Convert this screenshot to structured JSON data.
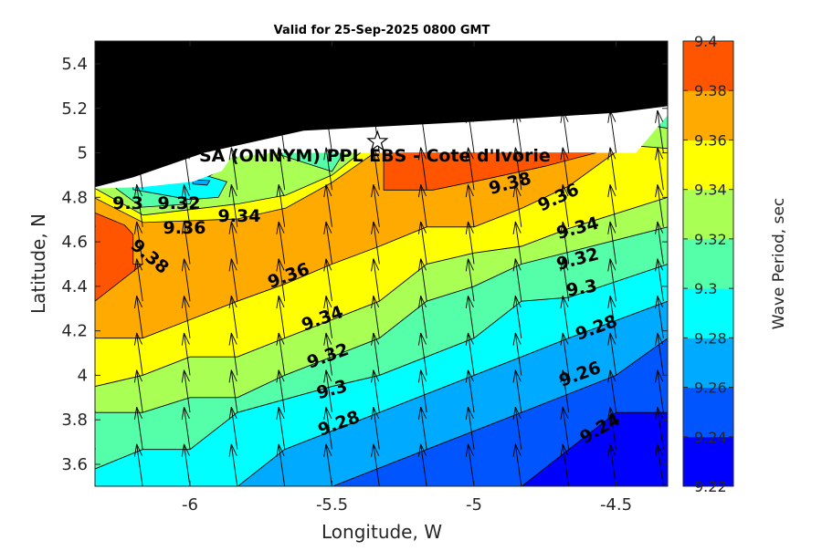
{
  "chart_data": {
    "type": "contour",
    "title": "Valid for 25-Sep-2025 0800 GMT",
    "xlabel": "Longitude, W",
    "ylabel": "Latitude, N",
    "xlim": [
      -6.334,
      -4.318
    ],
    "ylim": [
      3.5,
      5.5
    ],
    "xticks": [
      -6,
      -5.5,
      -5,
      -4.5
    ],
    "xtick_labels": [
      "-6",
      "-5.5",
      "-5",
      "-4.5"
    ],
    "yticks": [
      5.4,
      5.2,
      5.0,
      4.8,
      4.6,
      4.4,
      4.2,
      4.0,
      3.8,
      3.6
    ],
    "ytick_labels": [
      "5.4",
      "5.2",
      "5",
      "4.8",
      "4.6",
      "4.4",
      "4.2",
      "4",
      "3.8",
      "3.6"
    ],
    "colorbar": {
      "label": "Wave Period, sec",
      "levels": [
        9.22,
        9.24,
        9.26,
        9.28,
        9.3,
        9.32,
        9.34,
        9.36,
        9.38,
        9.4
      ],
      "tick_labels": [
        "9.22",
        "9.24",
        "9.26",
        "9.28",
        "9.3",
        "9.32",
        "9.34",
        "9.36",
        "9.38",
        "9.4"
      ],
      "colors": [
        "#0000ff",
        "#0055ff",
        "#00aaff",
        "#00ffff",
        "#55ffaa",
        "#aaff55",
        "#ffff00",
        "#ffaa00",
        "#ff5500"
      ]
    },
    "contours": [
      {
        "level": 9.24,
        "points": [
          [
            -4.833,
            3.5
          ],
          [
            -4.5,
            3.833
          ],
          [
            -4.318,
            3.833
          ]
        ]
      },
      {
        "level": 9.26,
        "points": [
          [
            -5.5,
            3.5
          ],
          [
            -5.167,
            3.667
          ],
          [
            -4.833,
            3.833
          ],
          [
            -4.5,
            4.0
          ],
          [
            -4.318,
            4.167
          ]
        ]
      },
      {
        "level": 9.28,
        "points": [
          [
            -5.833,
            3.5
          ],
          [
            -5.667,
            3.667
          ],
          [
            -5.333,
            3.833
          ],
          [
            -5.0,
            4.0
          ],
          [
            -4.833,
            4.083
          ],
          [
            -4.667,
            4.167
          ],
          [
            -4.318,
            4.333
          ]
        ]
      },
      {
        "level": 9.3,
        "points": [
          [
            -6.334,
            3.58
          ],
          [
            -6.167,
            3.667
          ],
          [
            -6.0,
            3.667
          ],
          [
            -5.833,
            3.833
          ],
          [
            -5.5,
            3.95
          ],
          [
            -5.333,
            4.0
          ],
          [
            -5.0,
            4.167
          ],
          [
            -4.833,
            4.333
          ],
          [
            -4.667,
            4.35
          ],
          [
            -4.318,
            4.5
          ]
        ]
      },
      {
        "level": 9.32,
        "points": [
          [
            -6.334,
            3.833
          ],
          [
            -6.167,
            3.833
          ],
          [
            -6.0,
            3.9
          ],
          [
            -5.833,
            3.9
          ],
          [
            -5.667,
            4.0
          ],
          [
            -5.333,
            4.167
          ],
          [
            -5.167,
            4.333
          ],
          [
            -5.0,
            4.4
          ],
          [
            -4.833,
            4.5
          ],
          [
            -4.318,
            4.667
          ]
        ]
      },
      {
        "level": 9.34,
        "points": [
          [
            -6.334,
            3.95
          ],
          [
            -6.167,
            4.0
          ],
          [
            -6.0,
            4.083
          ],
          [
            -5.833,
            4.083
          ],
          [
            -5.667,
            4.167
          ],
          [
            -5.5,
            4.25
          ],
          [
            -5.333,
            4.333
          ],
          [
            -5.167,
            4.5
          ],
          [
            -5.0,
            4.55
          ],
          [
            -4.833,
            4.58
          ],
          [
            -4.667,
            4.66
          ],
          [
            -4.318,
            4.8
          ]
        ]
      },
      {
        "level": 9.36,
        "points": [
          [
            -6.334,
            4.167
          ],
          [
            -6.167,
            4.167
          ],
          [
            -6.0,
            4.25
          ],
          [
            -5.833,
            4.333
          ],
          [
            -5.667,
            4.41
          ],
          [
            -5.5,
            4.5
          ],
          [
            -5.333,
            4.58
          ],
          [
            -5.167,
            4.667
          ],
          [
            -5.0,
            4.667
          ],
          [
            -4.833,
            4.75
          ],
          [
            -4.667,
            4.85
          ],
          [
            -4.45,
            5.05
          ]
        ]
      }
    ],
    "regions": [
      {
        "band": "9.38-9.4",
        "color": "#ff5500",
        "points": [
          [
            -5.318,
            5.0
          ],
          [
            -5.318,
            4.833
          ],
          [
            -5.145,
            4.833
          ],
          [
            -4.965,
            4.88
          ],
          [
            -4.75,
            4.94
          ],
          [
            -4.57,
            5.0
          ]
        ]
      },
      {
        "band": "9.38-9.4",
        "color": "#ff5500",
        "points": [
          [
            -6.334,
            4.73
          ],
          [
            -6.23,
            4.675
          ],
          [
            -6.2,
            4.633
          ],
          [
            -6.2,
            4.5
          ],
          [
            -6.167,
            4.5
          ],
          [
            -6.334,
            4.334
          ]
        ]
      },
      {
        "band": "9.34-9.36",
        "color": "#ffff00",
        "points": [
          [
            -6.334,
            4.797
          ],
          [
            -6.165,
            4.687
          ],
          [
            -5.833,
            4.703
          ],
          [
            -5.662,
            4.752
          ],
          [
            -5.5,
            4.867
          ],
          [
            -5.35,
            5.0
          ],
          [
            -5.35,
            5.6
          ],
          [
            -6.334,
            5.6
          ]
        ]
      },
      {
        "band": "9.32-9.34",
        "color": "#aaff55",
        "points": [
          [
            -6.334,
            4.84
          ],
          [
            -6.165,
            4.72
          ],
          [
            -5.833,
            4.77
          ],
          [
            -5.662,
            4.81
          ],
          [
            -5.5,
            4.9
          ],
          [
            -5.4,
            5.0
          ],
          [
            -5.4,
            5.6
          ],
          [
            -6.334,
            5.6
          ]
        ]
      },
      {
        "band": "9.30-9.32",
        "color": "#55ffaa",
        "points": [
          [
            -6.26,
            4.84
          ],
          [
            -6.17,
            4.756
          ],
          [
            -6.0,
            4.77
          ],
          [
            -5.97,
            4.867
          ],
          [
            -5.887,
            4.93
          ],
          [
            -5.887,
            5.6
          ],
          [
            -6.26,
            5.6
          ]
        ]
      },
      {
        "band": "9.30-9.32",
        "color": "#55ffaa",
        "points": [
          [
            -5.68,
            4.99
          ],
          [
            -5.5,
            4.916
          ],
          [
            -5.47,
            4.977
          ],
          [
            -5.47,
            5.2
          ],
          [
            -5.68,
            5.2
          ]
        ]
      },
      {
        "band": "9.28-9.30",
        "color": "#00ffff",
        "points": [
          [
            -6.2,
            4.835
          ],
          [
            -6.0,
            4.79
          ],
          [
            -5.9,
            4.8
          ],
          [
            -5.87,
            4.87
          ],
          [
            -5.95,
            4.9
          ],
          [
            -6.2,
            4.9
          ]
        ]
      },
      {
        "band": "9.26-9.28",
        "color": "#00aaff",
        "points": [
          [
            -5.99,
            4.86
          ],
          [
            -5.94,
            4.855
          ],
          [
            -5.93,
            4.875
          ],
          [
            -5.99,
            4.88
          ]
        ]
      },
      {
        "band": "9.32-9.34",
        "color": "#aaff55",
        "points": [
          [
            -4.42,
            5.03
          ],
          [
            -4.318,
            5.02
          ],
          [
            -4.318,
            5.3
          ],
          [
            -4.42,
            5.3
          ]
        ]
      },
      {
        "band": "9.30-9.32",
        "color": "#55ffaa",
        "points": [
          [
            -4.36,
            5.12
          ],
          [
            -4.318,
            5.11
          ],
          [
            -4.318,
            5.3
          ]
        ]
      }
    ],
    "data_edge": [
      [
        -6.334,
        4.84
      ],
      [
        -6.17,
        4.846
      ],
      [
        -5.99,
        4.87
      ],
      [
        -5.887,
        4.92
      ],
      [
        -5.855,
        4.98
      ],
      [
        -5.7,
        5.0
      ],
      [
        -4.43,
        5.0
      ],
      [
        -4.318,
        5.17
      ]
    ],
    "coastline": [
      [
        -6.334,
        4.846
      ],
      [
        -6.2,
        4.89
      ],
      [
        -5.95,
        5.0
      ],
      [
        -5.6,
        5.1
      ],
      [
        -5.0,
        5.14
      ],
      [
        -4.5,
        5.18
      ],
      [
        -4.318,
        5.21
      ]
    ],
    "station": {
      "label": "SA (ONNYM) PPL EBS  - Cote d'Ivorie",
      "lon": -5.34,
      "lat": 5.05
    },
    "wave_direction_deg": 352,
    "contour_labels": [
      "9.38",
      "9.36",
      "9.34",
      "9.32",
      "9.3",
      "9.28",
      "9.26",
      "9.24",
      "9.36",
      "9.34",
      "9.32",
      "9.3",
      "9.28",
      "9.38",
      "9.3",
      "9.32",
      "9.34",
      "9.36"
    ]
  }
}
